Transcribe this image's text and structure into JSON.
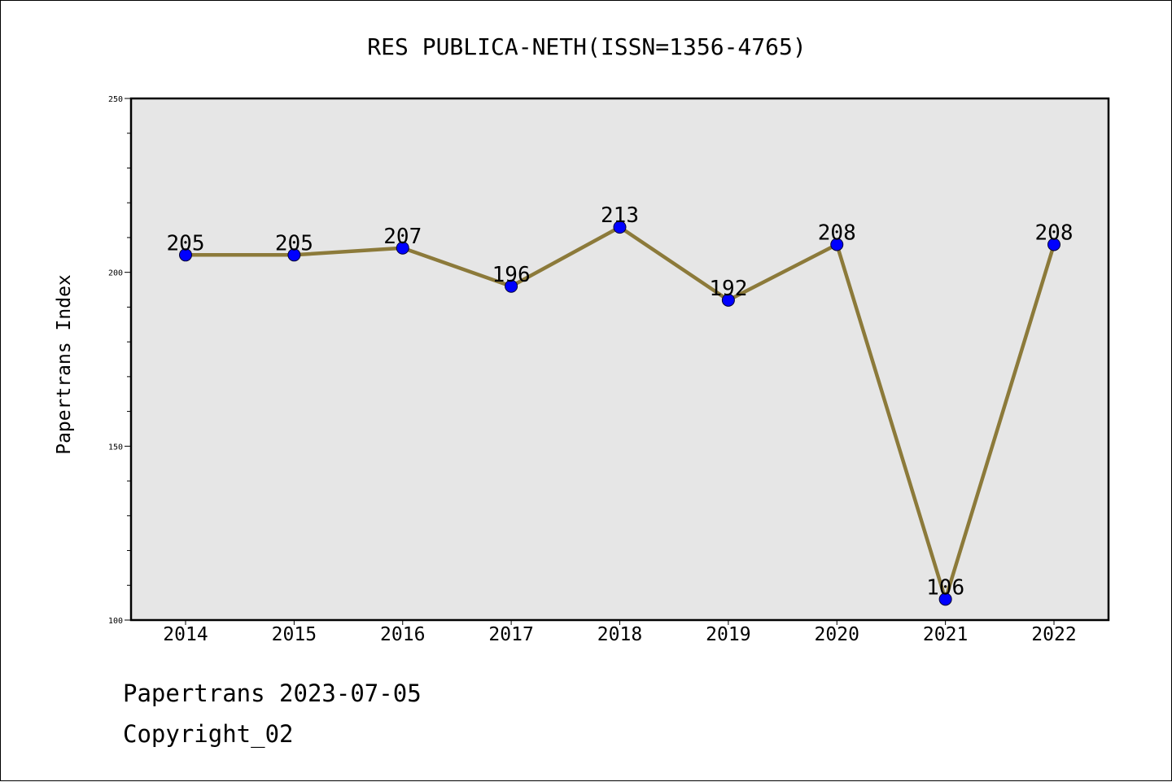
{
  "chart_data": {
    "type": "line",
    "title": "RES PUBLICA-NETH(ISSN=1356-4765)",
    "xlabel": "",
    "ylabel": "Papertrans Index",
    "categories": [
      "2014",
      "2015",
      "2016",
      "2017",
      "2018",
      "2019",
      "2020",
      "2021",
      "2022"
    ],
    "series": [
      {
        "values": [
          205,
          205,
          207,
          196,
          213,
          192,
          208,
          106,
          208
        ]
      }
    ],
    "ylim": [
      100,
      250
    ],
    "yticks": [
      100,
      150,
      200,
      250
    ],
    "grid": false,
    "legend": "none",
    "colors": {
      "line": "#8c7a3a",
      "marker": "#0000ff",
      "plot_background": "#e6e6e6"
    }
  },
  "footer": {
    "line1": "Papertrans 2023-07-05",
    "line2": "Copyright_02"
  }
}
